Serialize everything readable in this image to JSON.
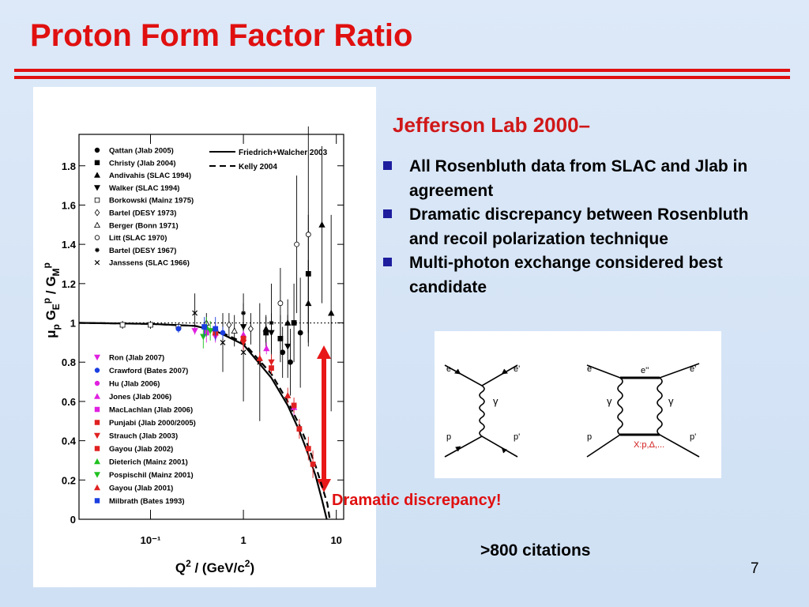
{
  "title": "Proton Form Factor Ratio",
  "subtitle": "Jefferson Lab 2000–",
  "bullets": [
    "All Rosenbluth data from SLAC and Jlab in agreement",
    "Dramatic discrepancy between Rosenbluth and recoil polarization technique",
    "Multi-photon exchange considered best candidate"
  ],
  "annotation": "Dramatic discrepancy!",
  "citations": ">800 citations",
  "page_number": "7",
  "feynman": {
    "left": [
      "e",
      "e'",
      "γ",
      "p",
      "p'"
    ],
    "right": [
      "e",
      "e''",
      "e'",
      "γ",
      "γ",
      "p",
      "p'",
      "X:p,Δ,..."
    ]
  },
  "chart_data": {
    "type": "scatter",
    "xscale": "log",
    "xlim": [
      0.017,
      12
    ],
    "ylim": [
      0,
      1.96
    ],
    "xticks": [
      {
        "value": 0.1,
        "label": "10⁻¹"
      },
      1,
      10
    ],
    "yticks": [
      0,
      0.2,
      0.4,
      0.6,
      0.8,
      1,
      1.2,
      1.4,
      1.6,
      1.8
    ],
    "xlabel": [
      "Q",
      "2",
      " / (GeV/c",
      "2",
      ")"
    ],
    "ylabel": [
      "μ",
      "p",
      " G",
      "E",
      "p",
      " / G",
      "M",
      "p"
    ],
    "reference_line": 1,
    "curves": [
      {
        "name": "Friedrich+Walcher 2003",
        "dash": false,
        "x": [
          0.017,
          0.1,
          0.3,
          0.5,
          1,
          2,
          3,
          4,
          5,
          6,
          7,
          7.9
        ],
        "values": [
          1.0,
          0.995,
          0.985,
          0.96,
          0.89,
          0.72,
          0.58,
          0.45,
          0.33,
          0.22,
          0.1,
          0
        ]
      },
      {
        "name": "Kelly 2004",
        "dash": true,
        "x": [
          0.017,
          0.1,
          0.3,
          0.5,
          1,
          2,
          3,
          4,
          5,
          6,
          7,
          8,
          8.5
        ],
        "values": [
          1.0,
          0.995,
          0.985,
          0.965,
          0.9,
          0.74,
          0.6,
          0.48,
          0.37,
          0.27,
          0.17,
          0.08,
          0
        ]
      }
    ],
    "series": [
      {
        "name": "Qattan (Jlab 2005)",
        "marker": "circle",
        "filled": true,
        "color": "#000000",
        "x": [
          2.64,
          3.2,
          4.1
        ],
        "values": [
          0.85,
          0.8,
          0.95
        ],
        "errors": [
          0.13,
          0.17,
          0.28
        ]
      },
      {
        "name": "Christy (Jlab 2004)",
        "marker": "square",
        "filled": true,
        "color": "#000000",
        "x": [
          1.75,
          2.5,
          3.5,
          5.0
        ],
        "values": [
          0.95,
          0.92,
          1.0,
          1.25
        ],
        "errors": [
          0.08,
          0.12,
          0.2,
          0.3
        ]
      },
      {
        "name": "Andivahis (SLAC 1994)",
        "marker": "triangle-up",
        "filled": true,
        "color": "#000000",
        "x": [
          1.75,
          3.0,
          5.0,
          7.0,
          8.8
        ],
        "values": [
          0.97,
          1.0,
          1.1,
          1.5,
          1.05
        ],
        "errors": [
          0.07,
          0.12,
          0.22,
          0.4,
          0.5
        ]
      },
      {
        "name": "Walker (SLAC 1994)",
        "marker": "triangle-down",
        "filled": true,
        "color": "#000000",
        "x": [
          1.0,
          2.0,
          3.0
        ],
        "values": [
          0.98,
          0.95,
          0.88
        ],
        "errors": [
          0.06,
          0.1,
          0.16
        ]
      },
      {
        "name": "Borkowski (Mainz 1975)",
        "marker": "square",
        "filled": false,
        "color": "#000000",
        "x": [
          0.05,
          0.1,
          0.2
        ],
        "values": [
          0.99,
          0.99,
          0.98
        ],
        "errors": [
          0.02,
          0.02,
          0.02
        ]
      },
      {
        "name": "Bartel (DESY 1973)",
        "marker": "diamond",
        "filled": false,
        "color": "#000000",
        "x": [
          0.7,
          1.2
        ],
        "values": [
          0.99,
          0.97
        ],
        "errors": [
          0.06,
          0.08
        ]
      },
      {
        "name": "Berger (Bonn 1971)",
        "marker": "triangle-up",
        "filled": false,
        "color": "#000000",
        "x": [
          0.4,
          0.8
        ],
        "values": [
          1.0,
          0.96
        ],
        "errors": [
          0.05,
          0.08
        ]
      },
      {
        "name": "Litt (SLAC 1970)",
        "marker": "circle",
        "filled": false,
        "color": "#000000",
        "x": [
          2.5,
          3.75,
          5.0
        ],
        "values": [
          1.1,
          1.4,
          1.45
        ],
        "errors": [
          0.18,
          0.35,
          0.55
        ]
      },
      {
        "name": "Bartel (DESY 1967)",
        "marker": "star",
        "filled": true,
        "color": "#000000",
        "x": [
          1.0,
          2.0
        ],
        "values": [
          1.05,
          1.0
        ],
        "errors": [
          0.1,
          0.2
        ]
      },
      {
        "name": "Janssens (SLAC 1966)",
        "marker": "cross",
        "filled": false,
        "color": "#000000",
        "x": [
          0.3,
          0.6,
          1.0,
          1.5
        ],
        "values": [
          1.05,
          0.9,
          0.85,
          0.8
        ],
        "errors": [
          0.1,
          0.15,
          0.25,
          0.3
        ]
      },
      {
        "name": "Ron (Jlab 2007)",
        "marker": "triangle-down",
        "filled": true,
        "color": "#e020e0",
        "x": [
          0.3,
          0.5
        ],
        "values": [
          0.96,
          0.93
        ],
        "errors": [
          0.02,
          0.03
        ]
      },
      {
        "name": "Crawford (Bates 2007)",
        "marker": "circle",
        "filled": true,
        "color": "#1a3ee0",
        "x": [
          0.2,
          0.4,
          0.6
        ],
        "values": [
          0.97,
          0.96,
          0.95
        ],
        "errors": [
          0.02,
          0.03,
          0.03
        ]
      },
      {
        "name": "Hu (Jlab 2006)",
        "marker": "circle",
        "filled": true,
        "color": "#e020e0",
        "x": [
          0.5,
          1.0
        ],
        "values": [
          0.97,
          0.91
        ],
        "errors": [
          0.03,
          0.04
        ]
      },
      {
        "name": "Jones (Jlab 2006)",
        "marker": "triangle-up",
        "filled": true,
        "color": "#e020e0",
        "x": [
          0.5,
          1.0,
          1.77,
          3.5
        ],
        "values": [
          0.97,
          0.94,
          0.87,
          0.57
        ],
        "errors": [
          0.02,
          0.02,
          0.03,
          0.04
        ]
      },
      {
        "name": "MacLachlan (Jlab 2006)",
        "marker": "square",
        "filled": true,
        "color": "#e020e0",
        "x": [
          0.4
        ],
        "values": [
          0.95
        ],
        "errors": [
          0.05
        ]
      },
      {
        "name": "Punjabi (Jlab 2000/2005)",
        "marker": "square",
        "filled": true,
        "color": "#e02020",
        "x": [
          0.5,
          1.0,
          2.0,
          3.5
        ],
        "values": [
          0.95,
          0.92,
          0.77,
          0.58
        ],
        "errors": [
          0.02,
          0.02,
          0.03,
          0.04
        ]
      },
      {
        "name": "Strauch (Jlab 2003)",
        "marker": "triangle-down",
        "filled": true,
        "color": "#e02020",
        "x": [
          1.0,
          2.0
        ],
        "values": [
          0.9,
          0.8
        ],
        "errors": [
          0.04,
          0.04
        ]
      },
      {
        "name": "Gayou (Jlab 2002)",
        "marker": "square",
        "filled": true,
        "color": "#e02020",
        "x": [
          4.0,
          5.0,
          5.6
        ],
        "values": [
          0.46,
          0.36,
          0.28
        ],
        "errors": [
          0.05,
          0.06,
          0.07
        ]
      },
      {
        "name": "Dieterich (Mainz 2001)",
        "marker": "triangle-up",
        "filled": true,
        "color": "#20c020",
        "x": [
          0.4
        ],
        "values": [
          0.98
        ],
        "errors": [
          0.05
        ]
      },
      {
        "name": "Pospischil (Mainz 2001)",
        "marker": "triangle-down",
        "filled": true,
        "color": "#20c020",
        "x": [
          0.37,
          0.44
        ],
        "values": [
          0.93,
          0.96
        ],
        "errors": [
          0.06,
          0.05
        ]
      },
      {
        "name": "Gayou (Jlab 2001)",
        "marker": "triangle-up",
        "filled": true,
        "color": "#e02020",
        "x": [
          0.5,
          1.5,
          3.0
        ],
        "values": [
          0.95,
          0.82,
          0.63
        ],
        "errors": [
          0.03,
          0.03,
          0.04
        ]
      },
      {
        "name": "Milbrath (Bates 1993)",
        "marker": "square",
        "filled": true,
        "color": "#1a3ee0",
        "x": [
          0.38,
          0.5
        ],
        "values": [
          0.98,
          0.97
        ],
        "errors": [
          0.05,
          0.06
        ]
      }
    ]
  }
}
